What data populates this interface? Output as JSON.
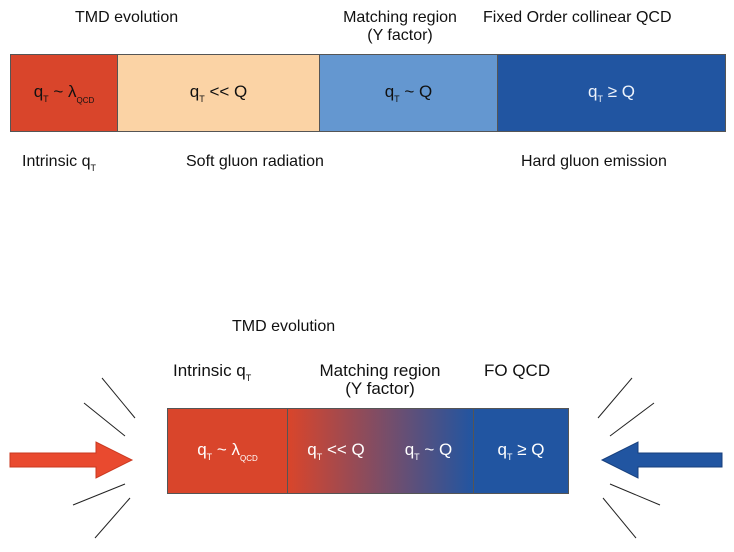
{
  "top": {
    "headings": {
      "tmd": "TMD evolution",
      "matching_line1": "Matching region",
      "matching_line2": "(Y factor)",
      "fixed_order": "Fixed Order collinear QCD"
    },
    "boxes": [
      {
        "base": "q",
        "sub": "T",
        "rel": " ~ λ",
        "rel_sub": "QCD",
        "color": "#d9452b"
      },
      {
        "base": "q",
        "sub": "T",
        "rel": " << Q",
        "rel_sub": "",
        "color": "#fbd3a5"
      },
      {
        "base": "q",
        "sub": "T",
        "rel": " ~ Q",
        "rel_sub": "",
        "color": "#6497d0"
      },
      {
        "base": "q",
        "sub": "T",
        "rel": " ≥ Q",
        "rel_sub": "",
        "color": "#2155a1"
      }
    ],
    "bottom_labels": {
      "intrinsic": "Intrinsic q",
      "intrinsic_sub": "T",
      "soft": "Soft gluon radiation",
      "hard": "Hard gluon emission"
    }
  },
  "bottom": {
    "title": "TMD evolution",
    "headings": {
      "intrinsic": "Intrinsic q",
      "intrinsic_sub": "T",
      "matching_line1": "Matching region",
      "matching_line2": "(Y factor)",
      "fo": "FO QCD"
    },
    "boxes": [
      {
        "base": "q",
        "sub": "T",
        "rel": " ~ λ",
        "rel_sub": "QCD"
      },
      {
        "base": "q",
        "sub": "T",
        "rel": " << Q",
        "rel_sub": ""
      },
      {
        "base": "q",
        "sub": "T",
        "rel": " ~ Q",
        "rel_sub": ""
      },
      {
        "base": "q",
        "sub": "T",
        "rel": " ≥ Q",
        "rel_sub": ""
      }
    ],
    "colors": {
      "red": "#d9452b",
      "blue": "#2155a1"
    }
  }
}
